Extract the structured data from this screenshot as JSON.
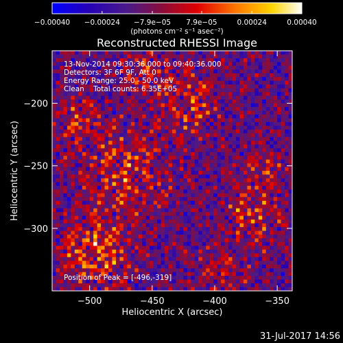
{
  "chart_data": {
    "type": "heatmap",
    "title": "Reconstructed RHESSI Image",
    "xlabel": "Heliocentric X (arcsec)",
    "ylabel": "Heliocentric Y (arcsec)",
    "xlim": [
      -530,
      -338
    ],
    "ylim": [
      -350,
      -158
    ],
    "x_ticks": [
      -500,
      -450,
      -400,
      -350
    ],
    "x_tick_labels": [
      "−500",
      "−450",
      "−400",
      "−350"
    ],
    "y_ticks": [
      -200,
      -250,
      -300
    ],
    "y_tick_labels": [
      "−200",
      "−250",
      "−300"
    ],
    "colorbar": {
      "range": [
        -0.0004,
        0.0004
      ],
      "ticks": [
        -0.0004,
        -0.00024,
        -7.9e-05,
        7.9e-05,
        0.00024,
        0.0004
      ],
      "tick_labels": [
        "−0.00040",
        "−0.00024",
        "−7.9e−05",
        "7.9e−05",
        "0.00024",
        "0.00040"
      ],
      "unit_label": "(photons cm⁻² s⁻¹ asec⁻²)",
      "colormap": [
        "#0000ff",
        "#2400b8",
        "#4a1a8a",
        "#8a0c3a",
        "#e00000",
        "#ff7a00",
        "#ffd400",
        "#ffffff"
      ]
    },
    "annotations": [
      "13-Nov-2014 09:30:36.000 to 09:40:36.000",
      "Detectors: 3F 6F 9F, Att 0",
      "Energy Range: 25.0 - 50.0 keV",
      "Clean    Total counts: 6.35E+05"
    ],
    "peak_label": "Position of Peak = [-496,-319]",
    "peak": [
      -496,
      -319
    ]
  },
  "timestamp": "31-Jul-2017 14:56"
}
